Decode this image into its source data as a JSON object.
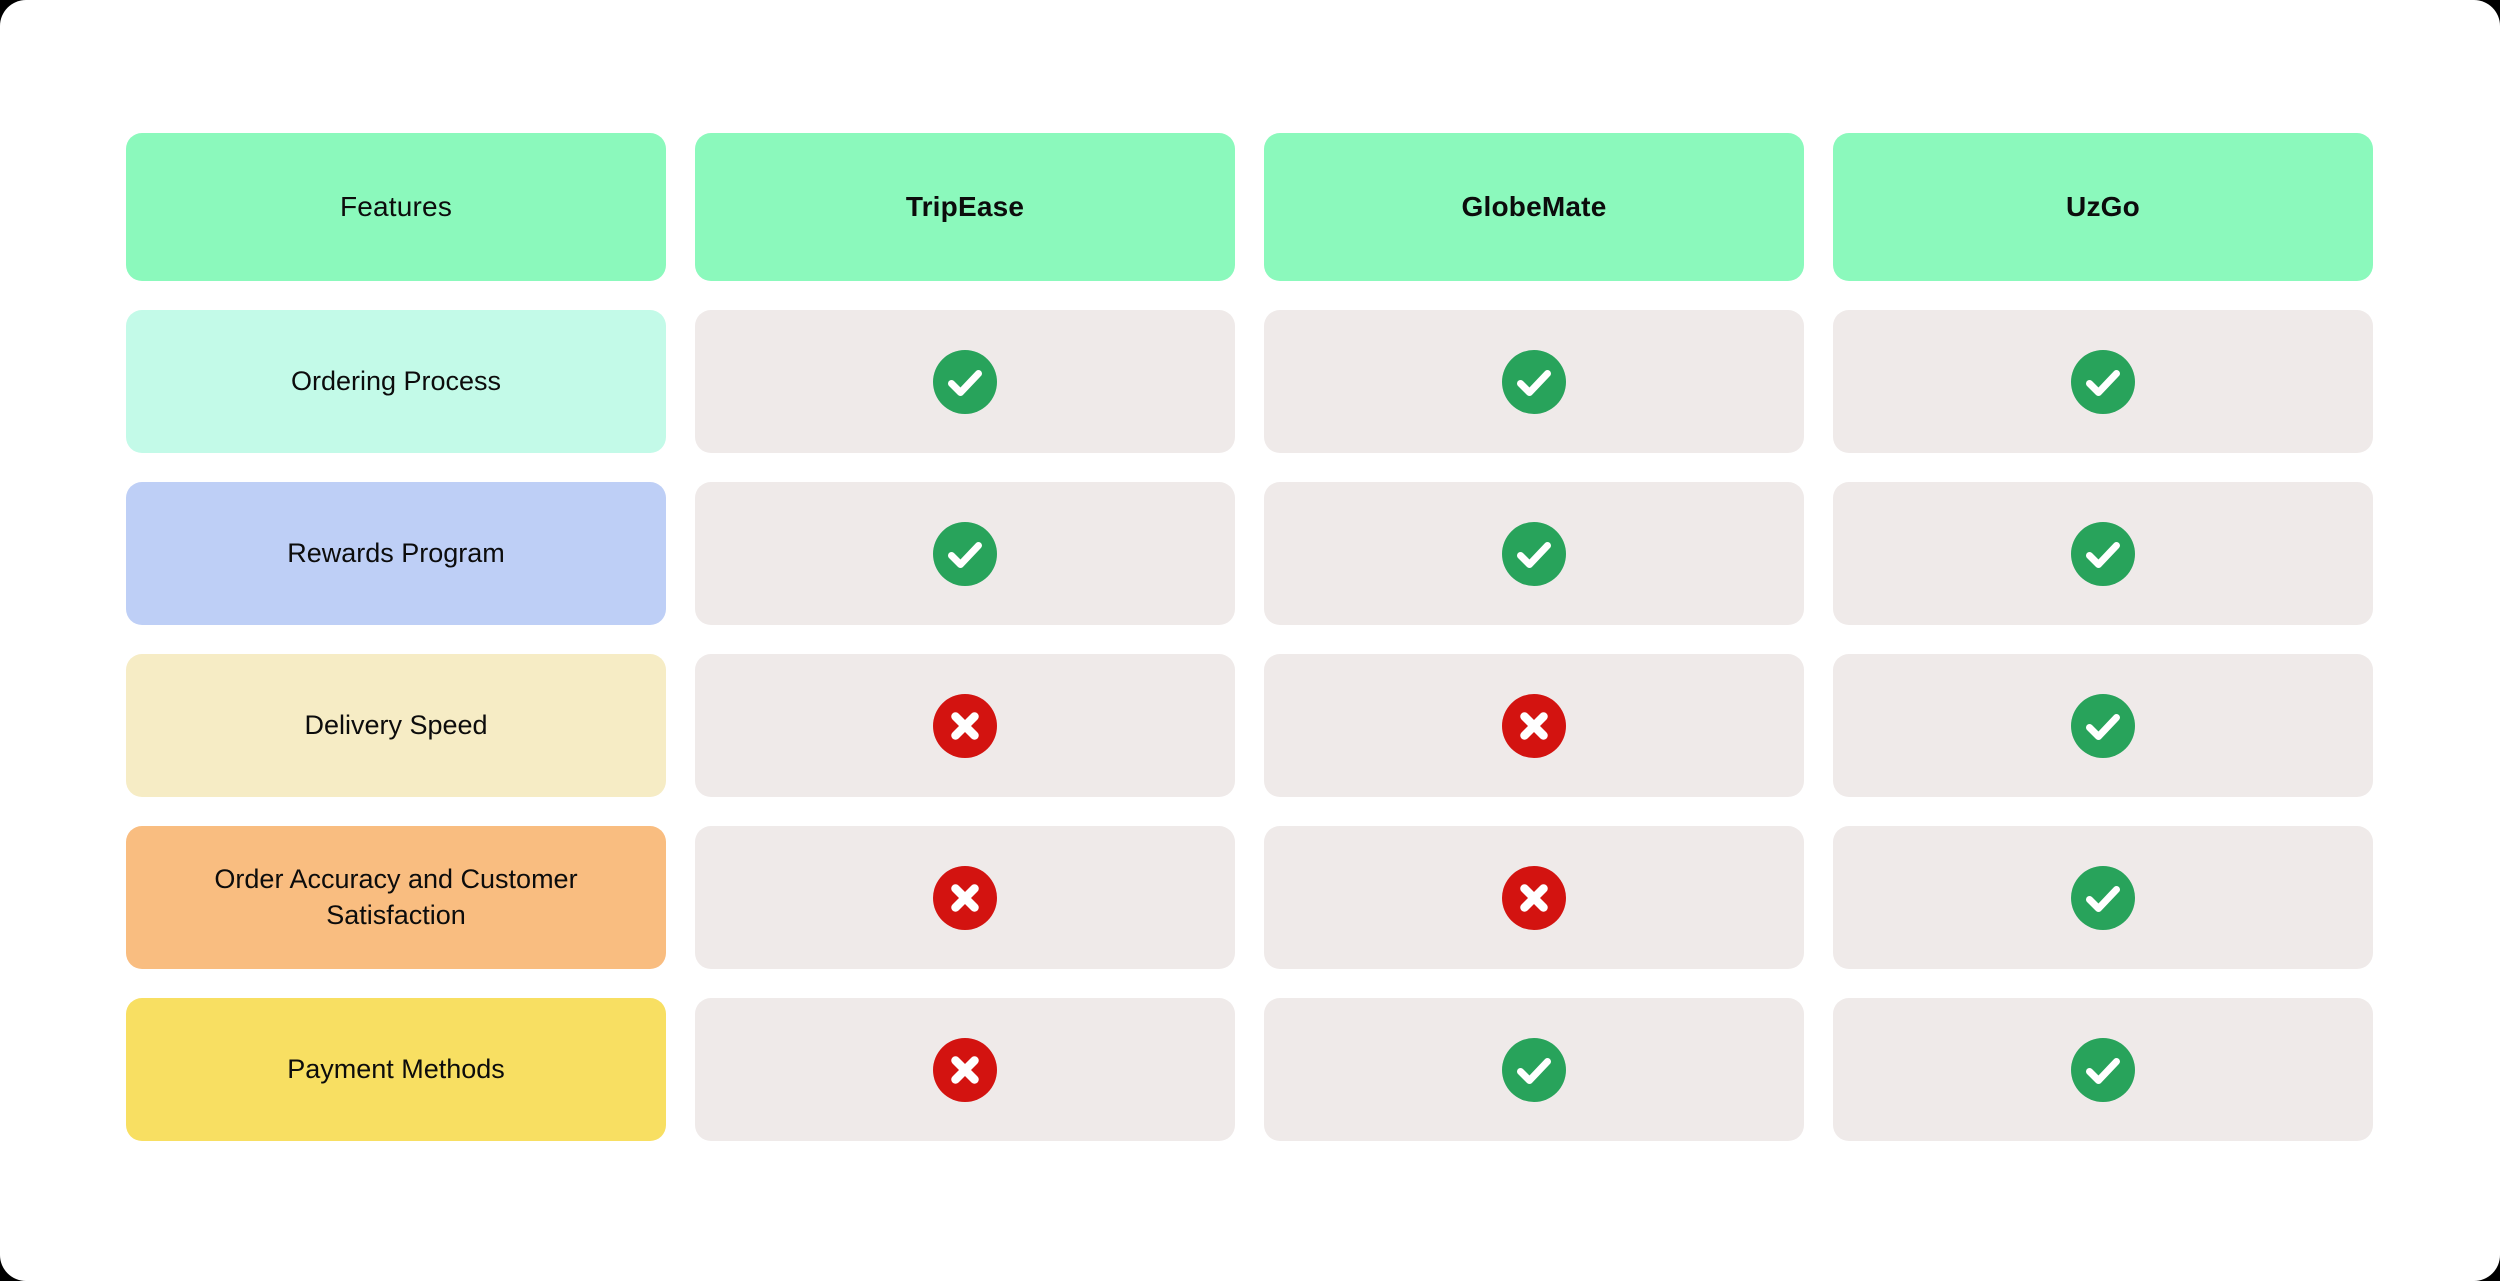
{
  "chart_data": {
    "type": "table",
    "title": "",
    "columns": [
      "Features",
      "TripEase",
      "GlobeMate",
      "UzGo"
    ],
    "rows": [
      {
        "feature": "Ordering Process",
        "TripEase": "yes",
        "GlobeMate": "yes",
        "UzGo": "yes"
      },
      {
        "feature": "Rewards Program",
        "TripEase": "yes",
        "GlobeMate": "yes",
        "UzGo": "yes"
      },
      {
        "feature": "Delivery Speed",
        "TripEase": "no",
        "GlobeMate": "no",
        "UzGo": "yes"
      },
      {
        "feature": "Order Accuracy and Customer Satisfaction",
        "TripEase": "no",
        "GlobeMate": "no",
        "UzGo": "yes"
      },
      {
        "feature": "Payment Methods",
        "TripEase": "no",
        "GlobeMate": "yes",
        "UzGo": "yes"
      }
    ]
  },
  "table": {
    "columns": [
      {
        "label": "Features"
      },
      {
        "label": "TripEase"
      },
      {
        "label": "GlobeMate"
      },
      {
        "label": "UzGo"
      }
    ],
    "rows": [
      {
        "label": "Ordering Process",
        "color": "#C3FAE8",
        "values": [
          "check",
          "check",
          "check"
        ]
      },
      {
        "label": "Rewards Program",
        "color": "#BECFF6",
        "values": [
          "check",
          "check",
          "check"
        ]
      },
      {
        "label": "Delivery Speed",
        "color": "#F6ECC5",
        "values": [
          "cross",
          "cross",
          "check"
        ]
      },
      {
        "label": "Order Accuracy and Customer Satisfaction",
        "color": "#F9BD80",
        "values": [
          "cross",
          "cross",
          "check"
        ]
      },
      {
        "label": "Payment Methods",
        "color": "#F8DF62",
        "values": [
          "cross",
          "check",
          "check"
        ]
      }
    ]
  },
  "icons": {
    "check": "check-circle-icon",
    "cross": "x-circle-icon"
  },
  "colors": {
    "page_background": "#000000",
    "canvas_background": "#FFFFFF",
    "header_background": "#8BF9BC",
    "value_cell_background": "#EFEAE9",
    "check_green": "#28A35B",
    "cross_red": "#D31310",
    "text": "#0C0C0C"
  }
}
